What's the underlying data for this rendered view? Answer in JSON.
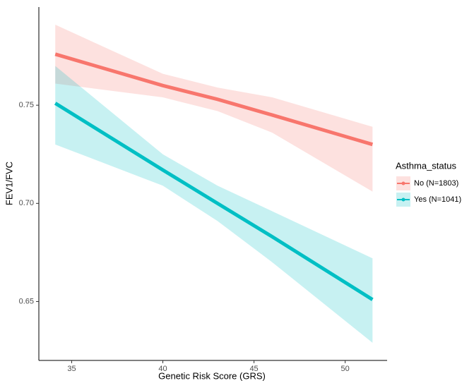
{
  "chart_data": {
    "type": "line",
    "x_label": "Genetic Risk Score (GRS)",
    "y_label": "FEV1/FVC",
    "legend_title": "Asthma_status",
    "legend": "right",
    "x": [
      34.1,
      40,
      43,
      46,
      51.5
    ],
    "series": [
      {
        "name": "No (N=1803)",
        "color": "#f8766d",
        "values": [
          0.776,
          0.76,
          0.753,
          0.745,
          0.73
        ],
        "lower": [
          0.761,
          0.754,
          0.747,
          0.736,
          0.706
        ],
        "upper": [
          0.791,
          0.766,
          0.759,
          0.754,
          0.739
        ]
      },
      {
        "name": "Yes (N=1041)",
        "color": "#00bfc4",
        "values": [
          0.751,
          0.717,
          0.7,
          0.683,
          0.651
        ],
        "lower": [
          0.73,
          0.709,
          0.691,
          0.67,
          0.629
        ],
        "upper": [
          0.77,
          0.725,
          0.709,
          0.696,
          0.672
        ]
      }
    ],
    "xlim": [
      33.2,
      52.3
    ],
    "xticks": [
      35,
      40,
      45,
      50
    ],
    "ylim": [
      0.62,
      0.8
    ],
    "yticks": [
      0.65,
      {
        "value": 0.7,
        "label": "0.70"
      },
      0.75
    ]
  }
}
